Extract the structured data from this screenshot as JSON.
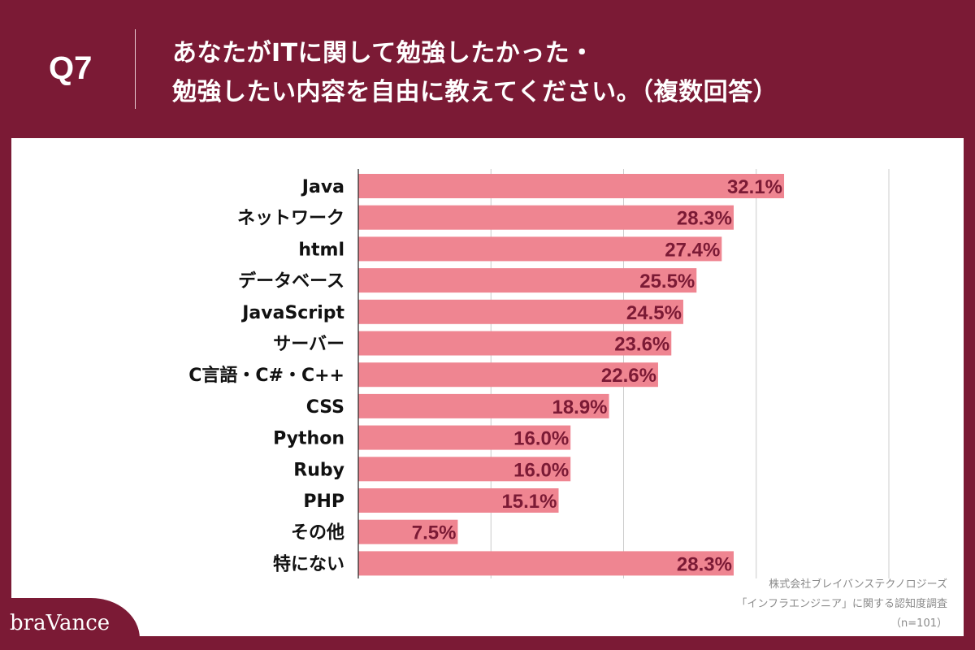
{
  "header": {
    "question_number": "Q7",
    "title_line1": "あなたがITに関して勉強したかった・",
    "title_line2": "勉強したい内容を自由に教えてください。（複数回答）"
  },
  "colors": {
    "background": "#7b1a35",
    "bar": "#ef8591",
    "data_label": "#7b1a35",
    "grid": "#cccccc"
  },
  "chart_data": {
    "type": "bar",
    "orientation": "horizontal",
    "categories": [
      "Java",
      "ネットワーク",
      "html",
      "データベース",
      "JavaScript",
      "サーバー",
      "C言語・C#・C++",
      "CSS",
      "Python",
      "Ruby",
      "PHP",
      "その他",
      "特にない"
    ],
    "values": [
      32.1,
      28.3,
      27.4,
      25.5,
      24.5,
      23.6,
      22.6,
      18.9,
      16.0,
      16.0,
      15.1,
      7.5,
      28.3
    ],
    "data_labels": [
      "32.1%",
      "28.3%",
      "27.4%",
      "25.5%",
      "24.5%",
      "23.6%",
      "22.6%",
      "18.9%",
      "16.0%",
      "16.0%",
      "15.1%",
      "7.5%",
      "28.3%"
    ],
    "xlim": [
      0,
      40
    ],
    "grid": true,
    "unit": "%"
  },
  "source": {
    "line1": "株式会社ブレイバンステクノロジーズ",
    "line2": "「インフラエンジニア」に関する認知度調査",
    "line3": "（n=101）"
  },
  "logo": "braVance"
}
